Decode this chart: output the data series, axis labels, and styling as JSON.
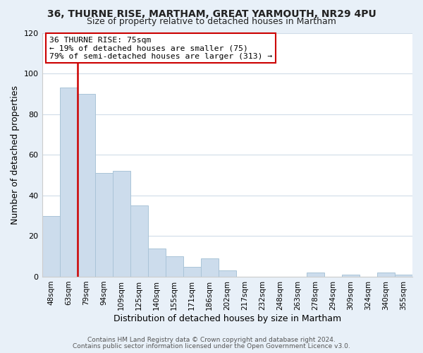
{
  "title": "36, THURNE RISE, MARTHAM, GREAT YARMOUTH, NR29 4PU",
  "subtitle": "Size of property relative to detached houses in Martham",
  "xlabel": "Distribution of detached houses by size in Martham",
  "ylabel": "Number of detached properties",
  "categories": [
    "48sqm",
    "63sqm",
    "79sqm",
    "94sqm",
    "109sqm",
    "125sqm",
    "140sqm",
    "155sqm",
    "171sqm",
    "186sqm",
    "202sqm",
    "217sqm",
    "232sqm",
    "248sqm",
    "263sqm",
    "278sqm",
    "294sqm",
    "309sqm",
    "324sqm",
    "340sqm",
    "355sqm"
  ],
  "values": [
    30,
    93,
    90,
    51,
    52,
    35,
    14,
    10,
    5,
    9,
    3,
    0,
    0,
    0,
    0,
    2,
    0,
    1,
    0,
    2,
    1
  ],
  "bar_color": "#ccdcec",
  "bar_edgecolor": "#aac4d8",
  "vline_x": 1.5,
  "vline_color": "#cc0000",
  "ylim": [
    0,
    120
  ],
  "yticks": [
    0,
    20,
    40,
    60,
    80,
    100,
    120
  ],
  "annotation_title": "36 THURNE RISE: 75sqm",
  "annotation_line1": "← 19% of detached houses are smaller (75)",
  "annotation_line2": "79% of semi-detached houses are larger (313) →",
  "annotation_box_facecolor": "#ffffff",
  "annotation_box_edgecolor": "#cc0000",
  "footer1": "Contains HM Land Registry data © Crown copyright and database right 2024.",
  "footer2": "Contains public sector information licensed under the Open Government Licence v3.0.",
  "fig_facecolor": "#e8f0f8",
  "ax_facecolor": "#ffffff",
  "grid_color": "#d0dce8",
  "title_fontsize": 10,
  "subtitle_fontsize": 9
}
